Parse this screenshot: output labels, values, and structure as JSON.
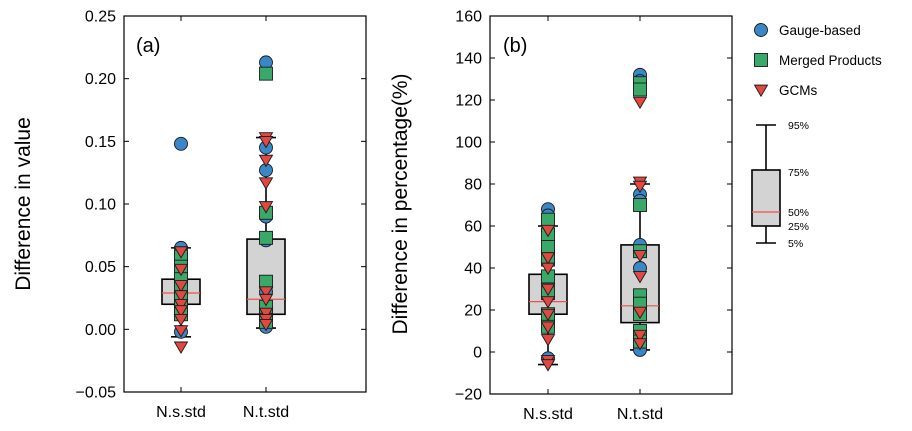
{
  "chart_data": [
    {
      "type": "box",
      "panel_label": "(a)",
      "ylabel": "Difference in value",
      "categories": [
        "N.s.std",
        "N.t.std"
      ],
      "ylim": [
        -0.05,
        0.25
      ],
      "yticks": [
        -0.05,
        0.0,
        0.05,
        0.1,
        0.15,
        0.2,
        0.25
      ],
      "ytick_labels": [
        "−0.05",
        "0.00",
        "0.05",
        "0.10",
        "0.15",
        "0.20",
        "0.25"
      ],
      "boxes": [
        {
          "category": "N.s.std",
          "p5": -0.006,
          "p25": 0.02,
          "median": 0.029,
          "p75": 0.04,
          "p95": 0.065
        },
        {
          "category": "N.t.std",
          "p5": 0.001,
          "p25": 0.012,
          "median": 0.024,
          "p75": 0.072,
          "p95": 0.153
        }
      ],
      "series": [
        {
          "name": "Gauge-based",
          "marker": "circle",
          "color": "#3a87c8",
          "values": [
            [
              0.148,
              0.065,
              0.06,
              0.055,
              -0.002
            ],
            [
              0.213,
              0.145,
              0.127,
              0.09,
              0.071,
              0.03,
              0.015,
              0.008,
              0.002
            ]
          ]
        },
        {
          "name": "Merged Products",
          "marker": "square",
          "color": "#3aa868",
          "values": [
            [
              0.058,
              0.05,
              0.04,
              0.033,
              0.025,
              0.018,
              0.012
            ],
            [
              0.204,
              0.093,
              0.073,
              0.038,
              0.018,
              0.006
            ]
          ]
        },
        {
          "name": "GCMs",
          "marker": "triangle-down",
          "color": "#e04841",
          "values": [
            [
              0.062,
              0.048,
              0.035,
              0.027,
              0.02,
              0.015,
              0.008,
              -0.001,
              -0.014
            ],
            [
              0.153,
              0.15,
              0.135,
              0.117,
              0.098,
              0.03,
              0.024,
              0.013,
              0.008,
              0.004
            ]
          ]
        }
      ]
    },
    {
      "type": "box",
      "panel_label": "(b)",
      "ylabel": "Difference in percentage(%)",
      "categories": [
        "N.s.std",
        "N.t.std"
      ],
      "ylim": [
        -20,
        160
      ],
      "yticks": [
        -20,
        0,
        20,
        40,
        60,
        80,
        100,
        120,
        140,
        160
      ],
      "ytick_labels": [
        "−20",
        "0",
        "20",
        "40",
        "60",
        "80",
        "100",
        "120",
        "140",
        "160"
      ],
      "boxes": [
        {
          "category": "N.s.std",
          "p5": -6,
          "p25": 18,
          "median": 24,
          "p75": 37,
          "p95": 60
        },
        {
          "category": "N.t.std",
          "p5": 1,
          "p25": 14,
          "median": 22,
          "p75": 51,
          "p95": 80
        }
      ],
      "series": [
        {
          "name": "Gauge-based",
          "marker": "circle",
          "color": "#3a87c8",
          "values": [
            [
              68,
              65,
              58,
              48,
              32,
              -3
            ],
            [
              132,
              129,
              75,
              72,
              51,
              40,
              8,
              3,
              1
            ]
          ]
        },
        {
          "name": "Merged Products",
          "marker": "square",
          "color": "#3aa868",
          "values": [
            [
              63,
              56,
              50,
              44,
              36,
              28,
              18,
              12
            ],
            [
              128,
              125,
              70,
              48,
              27,
              23,
              18,
              10,
              5
            ]
          ]
        },
        {
          "name": "GCMs",
          "marker": "triangle-down",
          "color": "#e04841",
          "values": [
            [
              58,
              45,
              40,
              30,
              24,
              18,
              12,
              6,
              -4,
              -6
            ],
            [
              119,
              81,
              79,
              46,
              36,
              19,
              8,
              4
            ]
          ]
        }
      ]
    }
  ],
  "legend": {
    "items": [
      {
        "label": "Gauge-based",
        "marker": "circle",
        "color": "#3a87c8"
      },
      {
        "label": "Merged Products",
        "marker": "square",
        "color": "#3aa868"
      },
      {
        "label": "GCMs",
        "marker": "triangle-down",
        "color": "#e04841"
      }
    ],
    "box_key": {
      "labels": [
        "95%",
        "75%",
        "50%",
        "25%",
        "5%"
      ]
    }
  },
  "colors": {
    "box_fill": "#d3d3d3",
    "median": "#e8554e",
    "whisker": "#000000"
  }
}
